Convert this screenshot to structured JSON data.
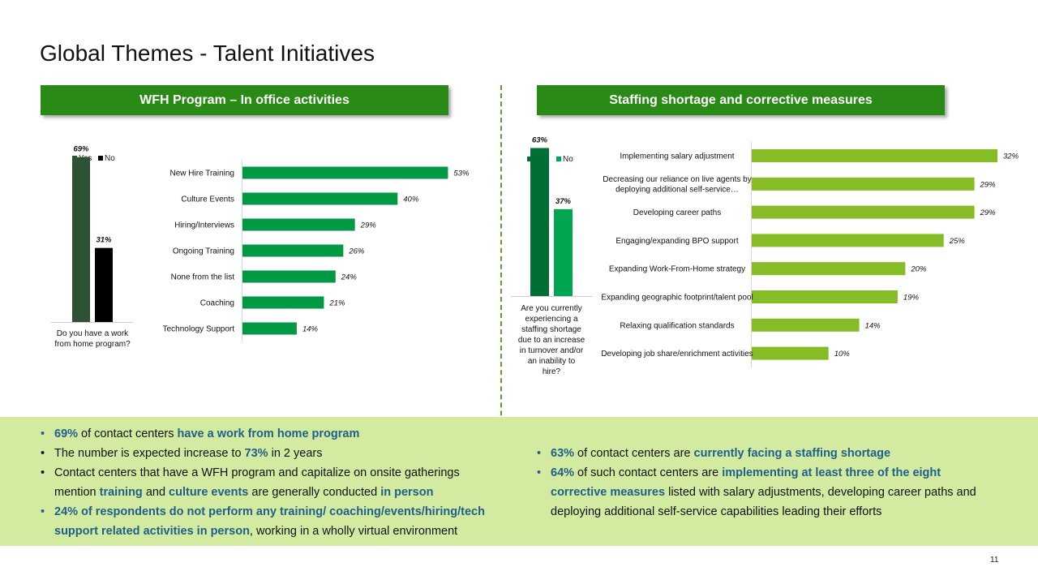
{
  "title": "Global Themes - Talent Initiatives",
  "left_banner": "WFH Program – In office activities",
  "right_banner": "Staffing shortage and corrective measures",
  "page_number": "11",
  "colors": {
    "banner": "#2a8a16",
    "dark_green": "#2d5234",
    "black": "#000000",
    "green": "#009a44",
    "deep_green": "#006e35",
    "lime": "#86bc25",
    "highlight": "#1f5f8b",
    "band": "#d2eba1"
  },
  "chart_data": [
    {
      "type": "bar",
      "id": "wfh-program",
      "categories": [
        "Do you have a work from home program?"
      ],
      "series": [
        {
          "name": "Yes",
          "values": [
            69
          ],
          "color": "#2d5234"
        },
        {
          "name": "No",
          "values": [
            31
          ],
          "color": "#000000"
        }
      ],
      "data_labels": [
        "69%",
        "31%"
      ],
      "legend": "top",
      "ylim": [
        0,
        75
      ]
    },
    {
      "type": "bar",
      "orientation": "horizontal",
      "id": "in-office-activities",
      "categories": [
        "New Hire Training",
        "Culture Events",
        "Hiring/Interviews",
        "Ongoing Training",
        "None from the list",
        "Coaching",
        "Technology Support"
      ],
      "values": [
        53,
        40,
        29,
        26,
        24,
        21,
        14
      ],
      "data_labels": [
        "53%",
        "40%",
        "29%",
        "26%",
        "24%",
        "21%",
        "14%"
      ],
      "color": "#009a44",
      "xlim": [
        0,
        55
      ]
    },
    {
      "type": "bar",
      "id": "staffing-shortage",
      "categories": [
        "Are you currently experiencing a staffing shortage due to an increase in turnover and/or an inability to hire?"
      ],
      "series": [
        {
          "name": "Yes",
          "values": [
            63
          ],
          "color": "#006e35"
        },
        {
          "name": "No",
          "values": [
            37
          ],
          "color": "#00a651"
        }
      ],
      "data_labels": [
        "63%",
        "37%"
      ],
      "legend": "top",
      "ylim": [
        0,
        68
      ]
    },
    {
      "type": "bar",
      "orientation": "horizontal",
      "id": "corrective-measures",
      "categories": [
        "Implementing salary adjustment",
        "Decreasing our reliance on live agents by deploying additional self-service…",
        "Developing career paths",
        "Engaging/expanding BPO support",
        "Expanding Work-From-Home strategy",
        "Expanding geographic footprint/talent pool",
        "Relaxing qualification standards",
        "Developing job share/enrichment activities"
      ],
      "values": [
        32,
        29,
        29,
        25,
        20,
        19,
        14,
        10
      ],
      "data_labels": [
        "32%",
        "29%",
        "29%",
        "25%",
        "20%",
        "19%",
        "14%",
        "10%"
      ],
      "color": "#86bc25",
      "xlim": [
        0,
        32
      ]
    }
  ],
  "bullets_left": [
    {
      "dot_color": "blue",
      "parts": [
        {
          "t": "69%",
          "hl": true
        },
        {
          "t": " of contact centers ",
          "hl": false
        },
        {
          "t": "have a work from home program",
          "hl": true
        }
      ]
    },
    {
      "dot_color": "black",
      "parts": [
        {
          "t": "The number is expected increase to ",
          "hl": false
        },
        {
          "t": "73%",
          "hl": true
        },
        {
          "t": " in 2 years",
          "hl": false
        }
      ]
    },
    {
      "dot_color": "black",
      "parts": [
        {
          "t": "Contact centers that have a WFH program and capitalize on onsite gatherings mention ",
          "hl": false
        },
        {
          "t": "training",
          "hl": true
        },
        {
          "t": " and ",
          "hl": false
        },
        {
          "t": "culture events",
          "hl": true
        },
        {
          "t": " are generally conducted ",
          "hl": false
        },
        {
          "t": "in person",
          "hl": true
        }
      ]
    },
    {
      "dot_color": "blue",
      "parts": [
        {
          "t": "24% of respondents do not perform any training/ coaching/events/hiring/tech support related activities in person",
          "hl": true
        },
        {
          "t": ", working in a wholly virtual environment",
          "hl": false
        }
      ]
    }
  ],
  "bullets_right": [
    {
      "dot_color": "blue",
      "parts": [
        {
          "t": "63%",
          "hl": true
        },
        {
          "t": " of contact centers are ",
          "hl": false
        },
        {
          "t": "currently facing a staffing shortage",
          "hl": true
        }
      ]
    },
    {
      "dot_color": "blue",
      "parts": [
        {
          "t": "64%",
          "hl": true
        },
        {
          "t": " of such contact centers are ",
          "hl": false
        },
        {
          "t": "implementing at least three of the eight corrective measures",
          "hl": true
        },
        {
          "t": " listed with salary adjustments, developing career paths and deploying additional self-service capabilities leading their efforts",
          "hl": false
        }
      ]
    }
  ]
}
